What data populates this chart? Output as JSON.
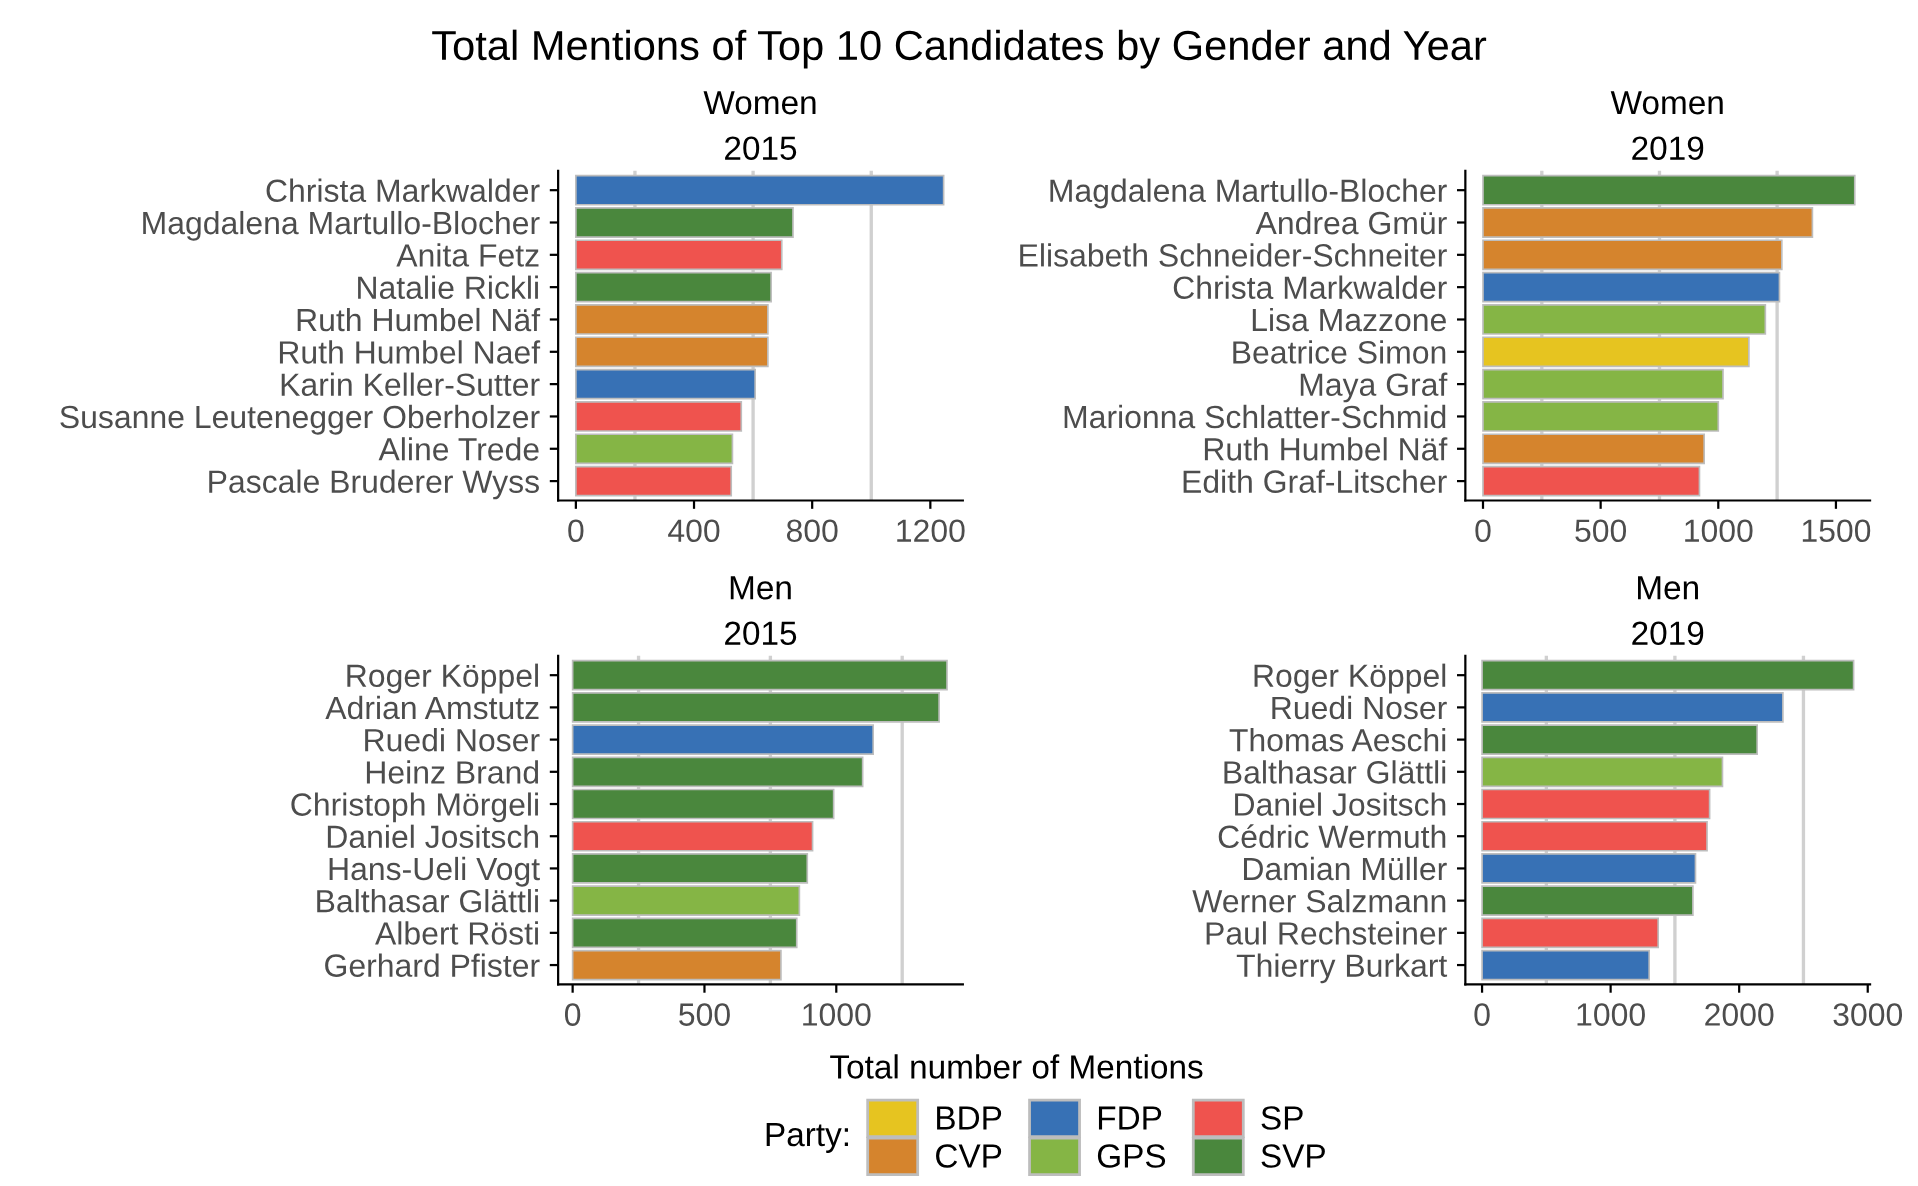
{
  "chart_data": [
    {
      "type": "bar",
      "orientation": "horizontal",
      "title": "Women",
      "subtitle": "2015",
      "annotations": [
        "Total Mentions of Top 10 Candidates by Gender and Year"
      ],
      "categories": [
        "Christa Markwalder",
        "Magdalena Martullo-Blocher",
        "Anita Fetz",
        "Natalie Rickli",
        "Ruth Humbel Näf",
        "Ruth Humbel Naef",
        "Karin Keller-Sutter",
        "Susanne Leutenegger Oberholzer",
        "Aline Trede",
        "Pascale Bruderer Wyss"
      ],
      "values": [
        1245,
        735,
        697,
        661,
        650,
        650,
        607,
        560,
        530,
        526
      ],
      "colors": [
        "#3771b5",
        "#4a873d",
        "#ef534e",
        "#4a873d",
        "#d5842d",
        "#d5842d",
        "#3771b5",
        "#ef534e",
        "#85b545",
        "#ef534e"
      ],
      "xlim": [
        -60,
        1310
      ],
      "xticks": [
        0,
        400,
        800,
        1200
      ],
      "grid": "x"
    },
    {
      "type": "bar",
      "orientation": "horizontal",
      "title": "Women",
      "subtitle": "2019",
      "categories": [
        "Magdalena Martullo-Blocher",
        "Andrea Gmür",
        "Elisabeth Schneider-Schneiter",
        "Christa Markwalder",
        "Lisa Mazzone",
        "Beatrice Simon",
        "Maya Graf",
        "Marionna Schlatter-Schmid",
        "Ruth Humbel Näf",
        "Edith Graf-Litscher"
      ],
      "values": [
        1580,
        1400,
        1270,
        1260,
        1200,
        1130,
        1020,
        1000,
        940,
        920
      ],
      "colors": [
        "#4a873d",
        "#d5842d",
        "#d5842d",
        "#3771b5",
        "#85b545",
        "#e6c420",
        "#85b545",
        "#85b545",
        "#d5842d",
        "#ef534e"
      ],
      "xlim": [
        -75,
        1645
      ],
      "xticks": [
        0,
        500,
        1000,
        1500
      ],
      "grid": "x"
    },
    {
      "type": "bar",
      "orientation": "horizontal",
      "title": "Men",
      "subtitle": "2015",
      "categories": [
        "Roger Köppel",
        "Adrian Amstutz",
        "Ruedi Noser",
        "Heinz Brand",
        "Christoph Mörgeli",
        "Daniel Jositsch",
        "Hans-Ueli Vogt",
        "Balthasar Glättli",
        "Albert Rösti",
        "Gerhard Pfister"
      ],
      "values": [
        1420,
        1390,
        1140,
        1100,
        990,
        910,
        890,
        860,
        850,
        790
      ],
      "colors": [
        "#4a873d",
        "#4a873d",
        "#3771b5",
        "#4a873d",
        "#4a873d",
        "#ef534e",
        "#4a873d",
        "#85b545",
        "#4a873d",
        "#d5842d"
      ],
      "xlim": [
        -55,
        1480
      ],
      "xticks": [
        0,
        500,
        1000
      ],
      "grid": "x"
    },
    {
      "type": "bar",
      "orientation": "horizontal",
      "title": "Men",
      "subtitle": "2019",
      "xlabel": "Total number of Mentions",
      "legend_title": "Party:",
      "categories": [
        "Roger Köppel",
        "Ruedi Noser",
        "Thomas Aeschi",
        "Balthasar Glättli",
        "Daniel Jositsch",
        "Cédric Wermuth",
        "Damian Müller",
        "Werner Salzmann",
        "Paul Rechsteiner",
        "Thierry Burkart"
      ],
      "series": [
        {
          "name": "BDP",
          "color": "#e6c420",
          "values": [
            null,
            null,
            null,
            null,
            null,
            null,
            null,
            null,
            null,
            null
          ]
        },
        {
          "name": "CVP",
          "color": "#d5842d",
          "values": [
            null,
            null,
            null,
            null,
            null,
            null,
            null,
            null,
            null,
            null
          ]
        },
        {
          "name": "FDP",
          "color": "#3771b5",
          "values": [
            null,
            2340,
            null,
            null,
            null,
            null,
            1660,
            null,
            null,
            1300
          ]
        },
        {
          "name": "GPS",
          "color": "#85b545",
          "values": [
            null,
            null,
            null,
            1870,
            null,
            null,
            null,
            null,
            null,
            null
          ]
        },
        {
          "name": "SP",
          "color": "#ef534e",
          "values": [
            null,
            null,
            null,
            null,
            1770,
            1750,
            null,
            null,
            1370,
            null
          ]
        },
        {
          "name": "SVP",
          "color": "#4a873d",
          "values": [
            2890,
            null,
            2140,
            null,
            null,
            null,
            null,
            1640,
            null,
            null
          ]
        }
      ],
      "xlim": [
        -130,
        3018
      ],
      "xticks": [
        0,
        1000,
        2000,
        3000
      ],
      "grid": "x",
      "legend": "bottom"
    }
  ]
}
